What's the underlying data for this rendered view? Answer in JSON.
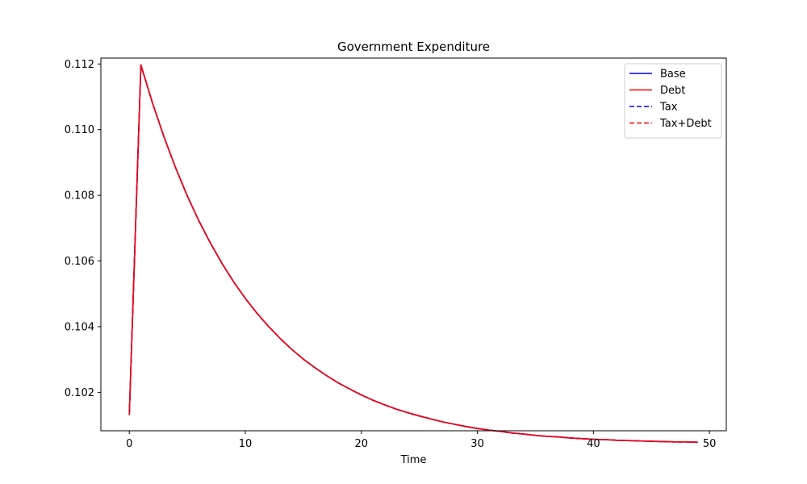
{
  "chart_data": {
    "type": "line",
    "title": "Government Expenditure",
    "xlabel": "Time",
    "ylabel": "",
    "xlim": [
      -2.45,
      51.45
    ],
    "ylim": [
      0.10083,
      0.11218
    ],
    "xticks": [
      0,
      10,
      20,
      30,
      40,
      50
    ],
    "xtick_labels": [
      "0",
      "10",
      "20",
      "30",
      "40",
      "50"
    ],
    "yticks": [
      0.102,
      0.104,
      0.106,
      0.108,
      0.11,
      0.112
    ],
    "ytick_labels": [
      "0.102",
      "0.104",
      "0.106",
      "0.108",
      "0.110",
      "0.112"
    ],
    "grid": false,
    "legend_position": "top-right",
    "x": [
      0,
      1,
      2,
      3,
      4,
      5,
      6,
      7,
      8,
      9,
      10,
      11,
      12,
      13,
      14,
      15,
      16,
      17,
      18,
      19,
      20,
      21,
      22,
      23,
      24,
      25,
      26,
      27,
      28,
      29,
      30,
      31,
      32,
      33,
      34,
      35,
      36,
      37,
      38,
      39,
      40,
      41,
      42,
      43,
      44,
      45,
      46,
      47,
      48,
      49
    ],
    "series": [
      {
        "name": "Base",
        "color": "#0000ff",
        "style": "solid",
        "values": [
          0.10131,
          0.11197,
          0.11081,
          0.10977,
          0.10883,
          0.10798,
          0.10722,
          0.10654,
          0.10592,
          0.10536,
          0.10486,
          0.10441,
          0.10401,
          0.10364,
          0.10331,
          0.10301,
          0.10275,
          0.10251,
          0.10229,
          0.1021,
          0.10192,
          0.10176,
          0.10162,
          0.10149,
          0.10138,
          0.10128,
          0.10119,
          0.1011,
          0.10103,
          0.10096,
          0.1009,
          0.10085,
          0.10081,
          0.10076,
          0.10073,
          0.10069,
          0.10066,
          0.10064,
          0.10061,
          0.10059,
          0.10057,
          0.10056,
          0.10054,
          0.10053,
          0.10052,
          0.10051,
          0.1005,
          0.10049,
          0.10049,
          0.10048
        ]
      },
      {
        "name": "Debt",
        "color": "#ff0000",
        "style": "solid",
        "values": [
          0.10131,
          0.11197,
          0.11081,
          0.10977,
          0.10883,
          0.10798,
          0.10722,
          0.10654,
          0.10592,
          0.10536,
          0.10486,
          0.10441,
          0.10401,
          0.10364,
          0.10331,
          0.10301,
          0.10275,
          0.10251,
          0.10229,
          0.1021,
          0.10192,
          0.10176,
          0.10162,
          0.10149,
          0.10138,
          0.10128,
          0.10119,
          0.1011,
          0.10103,
          0.10096,
          0.1009,
          0.10085,
          0.10081,
          0.10076,
          0.10073,
          0.10069,
          0.10066,
          0.10064,
          0.10061,
          0.10059,
          0.10057,
          0.10056,
          0.10054,
          0.10053,
          0.10052,
          0.10051,
          0.1005,
          0.10049,
          0.10049,
          0.10048
        ]
      },
      {
        "name": "Tax",
        "color": "#0000ff",
        "style": "dashed",
        "values": [
          0.10131,
          0.11197,
          0.11081,
          0.10977,
          0.10883,
          0.10798,
          0.10722,
          0.10654,
          0.10592,
          0.10536,
          0.10486,
          0.10441,
          0.10401,
          0.10364,
          0.10331,
          0.10301,
          0.10275,
          0.10251,
          0.10229,
          0.1021,
          0.10192,
          0.10176,
          0.10162,
          0.10149,
          0.10138,
          0.10128,
          0.10119,
          0.1011,
          0.10103,
          0.10096,
          0.1009,
          0.10085,
          0.10081,
          0.10076,
          0.10073,
          0.10069,
          0.10066,
          0.10064,
          0.10061,
          0.10059,
          0.10057,
          0.10056,
          0.10054,
          0.10053,
          0.10052,
          0.10051,
          0.1005,
          0.10049,
          0.10049,
          0.10048
        ]
      },
      {
        "name": "Tax+Debt",
        "color": "#ff0000",
        "style": "dashed",
        "values": [
          0.10131,
          0.11197,
          0.11081,
          0.10977,
          0.10883,
          0.10798,
          0.10722,
          0.10654,
          0.10592,
          0.10536,
          0.10486,
          0.10441,
          0.10401,
          0.10364,
          0.10331,
          0.10301,
          0.10275,
          0.10251,
          0.10229,
          0.1021,
          0.10192,
          0.10176,
          0.10162,
          0.10149,
          0.10138,
          0.10128,
          0.10119,
          0.1011,
          0.10103,
          0.10096,
          0.1009,
          0.10085,
          0.10081,
          0.10076,
          0.10073,
          0.10069,
          0.10066,
          0.10064,
          0.10061,
          0.10059,
          0.10057,
          0.10056,
          0.10054,
          0.10053,
          0.10052,
          0.10051,
          0.1005,
          0.10049,
          0.10049,
          0.10048
        ]
      }
    ]
  }
}
